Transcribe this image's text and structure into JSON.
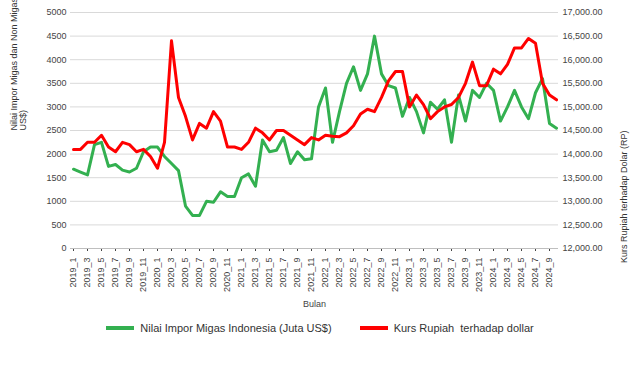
{
  "chart_data": {
    "type": "line",
    "x_label": "Bulan",
    "y_label": "Nilai Impor Migas dan Non Migas Indonesia (Juta US$)",
    "y2_label": "Kurs Rupiah terhadap Dolar (RP)",
    "categories": [
      "2019_1",
      null,
      "2019_3",
      null,
      "2019_5",
      null,
      "2019_7",
      null,
      "2019_9",
      null,
      "2019_11",
      null,
      "2020_1",
      null,
      "2020_3",
      null,
      "2020_5",
      null,
      "2020_7",
      null,
      "2020_9",
      null,
      "2020_11",
      null,
      "2021_1",
      null,
      "2021_3",
      null,
      "2021_5",
      null,
      "2021_7",
      null,
      "2021_9",
      null,
      "2021_11",
      null,
      "2022_1",
      null,
      "2022_3",
      null,
      "2022_5",
      null,
      "2022_7",
      null,
      "2022_9",
      null,
      "2022_11",
      null,
      "2023_1",
      null,
      "2023_3",
      null,
      "2023_5",
      null,
      "2023_7",
      null,
      "2023_9",
      null,
      "2023_11",
      null,
      "2024_1",
      null,
      "2024_3",
      null,
      "2024_5",
      null,
      "2024_7",
      null,
      "2024_9",
      null
    ],
    "ylim": [
      0,
      5000
    ],
    "yticks": [
      0,
      500,
      1000,
      1500,
      2000,
      2500,
      3000,
      3500,
      4000,
      4500,
      5000
    ],
    "y2lim": [
      12000,
      17000
    ],
    "y2ticks": [
      {
        "value": 12000,
        "label": "12,000.00"
      },
      {
        "value": 12500,
        "label": "12,500.00"
      },
      {
        "value": 13000,
        "label": "13,000.00"
      },
      {
        "value": 13500,
        "label": "13,500.00"
      },
      {
        "value": 14000,
        "label": "14,000.00"
      },
      {
        "value": 14500,
        "label": "14,500.00"
      },
      {
        "value": 15000,
        "label": "15,000.00"
      },
      {
        "value": 15500,
        "label": "15,500.00"
      },
      {
        "value": 16000,
        "label": "16,000.00"
      },
      {
        "value": 16500,
        "label": "16,500.00"
      },
      {
        "value": 17000,
        "label": "17,000.00"
      }
    ],
    "grid": true,
    "legend": "bottom",
    "series": [
      {
        "name": "Nilai Impor Migas Indonesia (Juta US$)",
        "color": "#33b050",
        "values": [
          1680,
          1620,
          1560,
          2200,
          2250,
          1740,
          1780,
          1660,
          1620,
          1700,
          2050,
          2150,
          2150,
          1950,
          1800,
          1650,
          900,
          700,
          700,
          1000,
          980,
          1200,
          1100,
          1100,
          1500,
          1580,
          1320,
          2300,
          2050,
          2080,
          2350,
          1800,
          2050,
          1880,
          1900,
          3000,
          3400,
          2250,
          2900,
          3500,
          3850,
          3350,
          3700,
          4500,
          3700,
          3450,
          3400,
          2800,
          3200,
          2900,
          2450,
          3100,
          2950,
          3150,
          2250,
          3250,
          2700,
          3350,
          3200,
          3500,
          3350,
          2700,
          3000,
          3350,
          3000,
          2750,
          3300,
          3600,
          2650,
          2550
        ]
      },
      {
        "name": "Kurs Rupiah  terhadap dollar",
        "color": "#ff0000",
        "axis": "y2",
        "values": [
          14100,
          14100,
          14250,
          14250,
          14400,
          14150,
          14050,
          14250,
          14200,
          14050,
          14100,
          13950,
          13700,
          14250,
          16400,
          15200,
          14800,
          14300,
          14650,
          14550,
          14900,
          14700,
          14150,
          14150,
          14100,
          14250,
          14550,
          14450,
          14300,
          14500,
          14500,
          14400,
          14300,
          14200,
          14350,
          14300,
          14400,
          14380,
          14370,
          14450,
          14600,
          14850,
          14950,
          14900,
          15200,
          15550,
          15750,
          15750,
          15000,
          15250,
          15050,
          14750,
          14900,
          15000,
          15050,
          15200,
          15500,
          15950,
          15450,
          15450,
          15800,
          15700,
          15900,
          16250,
          16250,
          16450,
          16350,
          15500,
          15250,
          15150
        ]
      }
    ]
  }
}
